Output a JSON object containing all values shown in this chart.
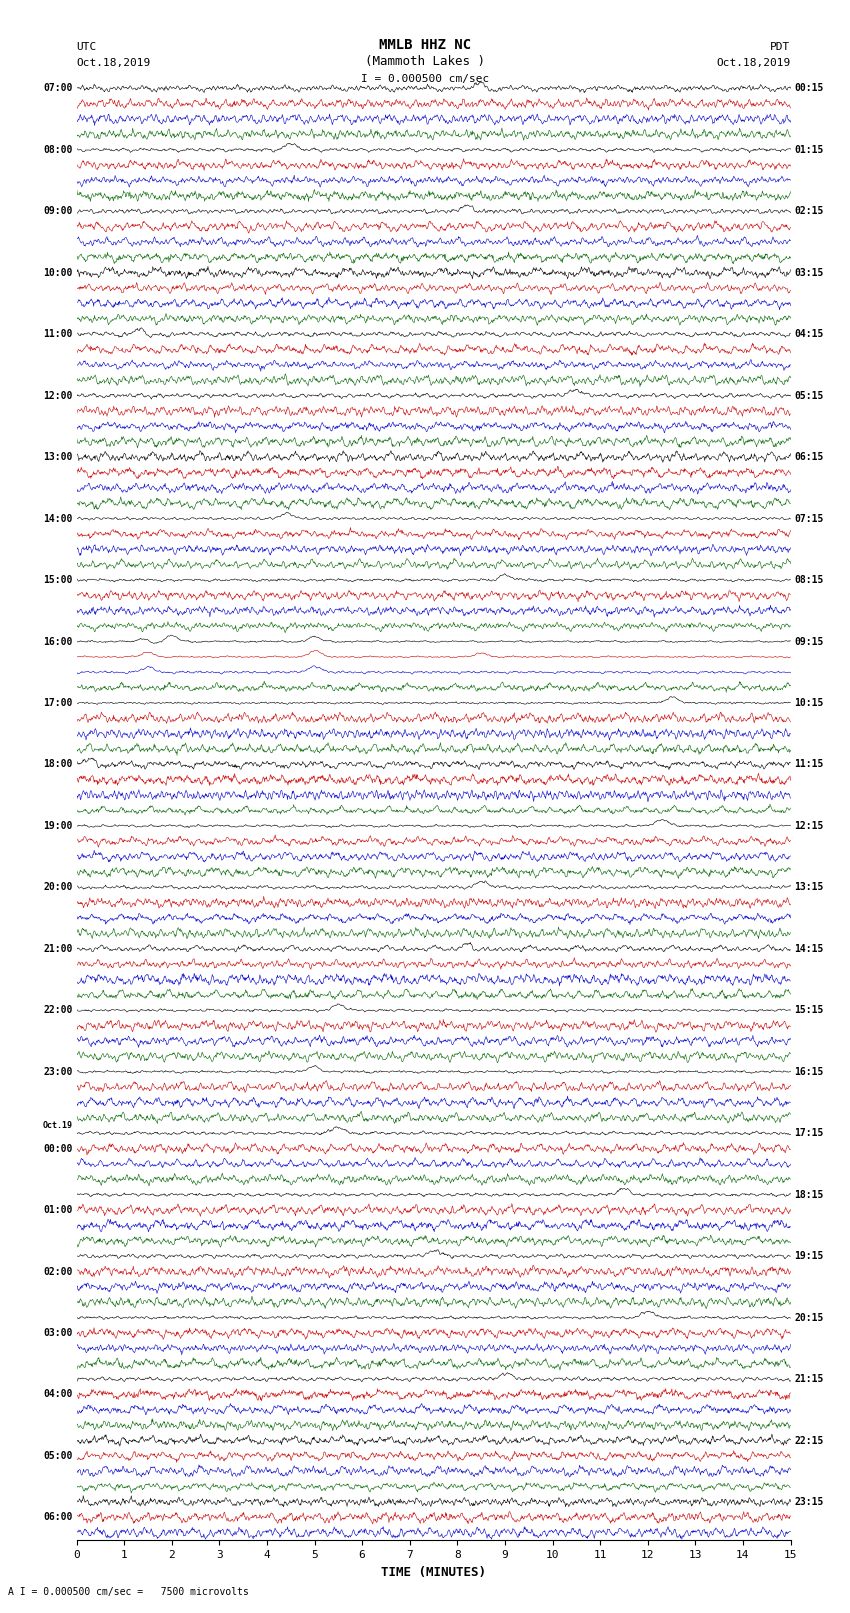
{
  "title_line1": "MMLB HHZ NC",
  "title_line2": "(Mammoth Lakes )",
  "scale_label": "I = 0.000500 cm/sec",
  "bottom_label": "A I = 0.000500 cm/sec =   7500 microvolts",
  "xlabel": "TIME (MINUTES)",
  "utc_line1": "UTC",
  "utc_line2": "Oct.18,2019",
  "pdt_line1": "PDT",
  "pdt_line2": "Oct.18,2019",
  "left_times": [
    "07:00",
    "",
    "",
    "",
    "08:00",
    "",
    "",
    "",
    "09:00",
    "",
    "",
    "",
    "10:00",
    "",
    "",
    "",
    "11:00",
    "",
    "",
    "",
    "12:00",
    "",
    "",
    "",
    "13:00",
    "",
    "",
    "",
    "14:00",
    "",
    "",
    "",
    "15:00",
    "",
    "",
    "",
    "16:00",
    "",
    "",
    "",
    "17:00",
    "",
    "",
    "",
    "18:00",
    "",
    "",
    "",
    "19:00",
    "",
    "",
    "",
    "20:00",
    "",
    "",
    "",
    "21:00",
    "",
    "",
    "",
    "22:00",
    "",
    "",
    "",
    "23:00",
    "",
    "",
    "",
    "Oct.19",
    "00:00",
    "",
    "",
    "",
    "01:00",
    "",
    "",
    "",
    "02:00",
    "",
    "",
    "",
    "03:00",
    "",
    "",
    "",
    "04:00",
    "",
    "",
    "",
    "05:00",
    "",
    "",
    "",
    "06:00",
    "",
    ""
  ],
  "right_times": [
    "00:15",
    "",
    "",
    "",
    "01:15",
    "",
    "",
    "",
    "02:15",
    "",
    "",
    "",
    "03:15",
    "",
    "",
    "",
    "04:15",
    "",
    "",
    "",
    "05:15",
    "",
    "",
    "",
    "06:15",
    "",
    "",
    "",
    "07:15",
    "",
    "",
    "",
    "08:15",
    "",
    "",
    "",
    "09:15",
    "",
    "",
    "",
    "10:15",
    "",
    "",
    "",
    "11:15",
    "",
    "",
    "",
    "12:15",
    "",
    "",
    "",
    "13:15",
    "",
    "",
    "",
    "14:15",
    "",
    "",
    "",
    "15:15",
    "",
    "",
    "",
    "16:15",
    "",
    "",
    "",
    "17:15",
    "",
    "",
    "",
    "18:15",
    "",
    "",
    "",
    "19:15",
    "",
    "",
    "",
    "20:15",
    "",
    "",
    "",
    "21:15",
    "",
    "",
    "",
    "22:15",
    "",
    "",
    "",
    "23:15",
    "",
    ""
  ],
  "n_rows": 95,
  "trace_color_black": "#000000",
  "trace_color_red": "#cc0000",
  "trace_color_blue": "#0000cc",
  "trace_color_green": "#006600",
  "bg_color": "white",
  "fig_width": 8.5,
  "fig_height": 16.13,
  "xmin": 0,
  "xmax": 15,
  "xticks": [
    0,
    1,
    2,
    3,
    4,
    5,
    6,
    7,
    8,
    9,
    10,
    11,
    12,
    13,
    14,
    15
  ]
}
